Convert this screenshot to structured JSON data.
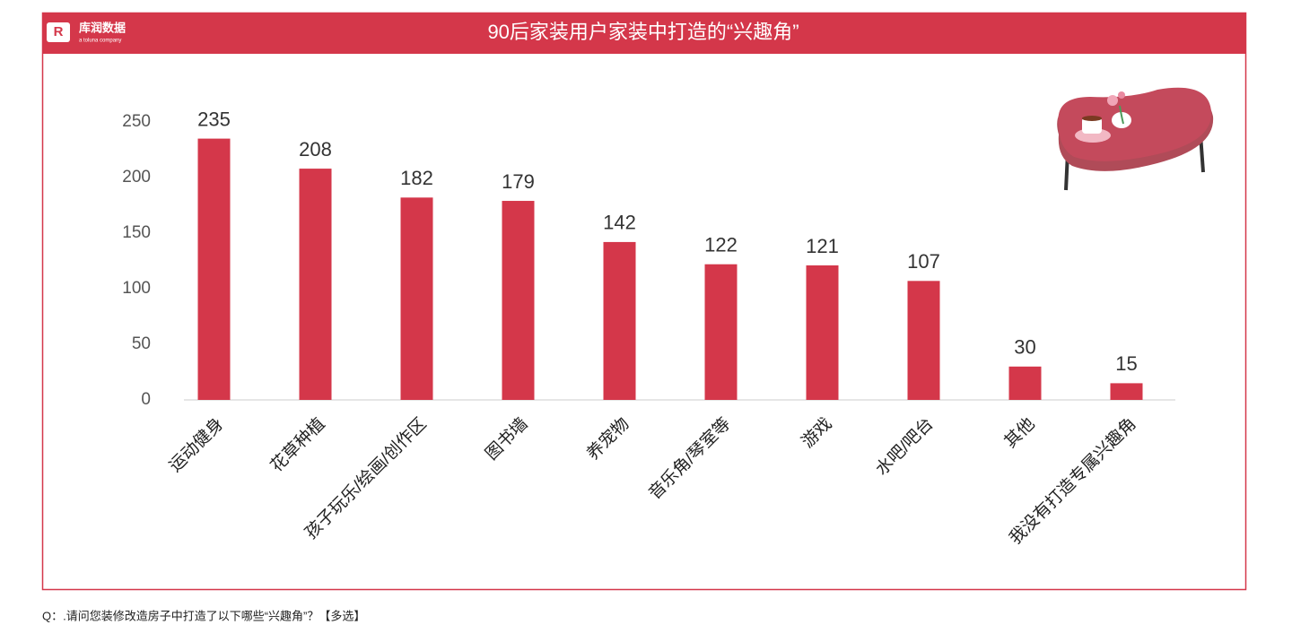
{
  "logo": {
    "name": "库润数据",
    "tagline": "a toluna company"
  },
  "chart_data": {
    "type": "bar",
    "title": "90后家装用户家装中打造的“兴趣角”",
    "categories": [
      "运动健身",
      "花草种植",
      "孩子玩乐/绘画/创作区",
      "图书墙",
      "养宠物",
      "音乐角/琴室等",
      "游戏",
      "水吧/吧台",
      "其他",
      "我没有打造专属兴趣角"
    ],
    "values": [
      235,
      208,
      182,
      179,
      142,
      122,
      121,
      107,
      30,
      15
    ],
    "color": "#d4374a",
    "ylim": [
      0,
      250
    ],
    "yticks": [
      0,
      50,
      100,
      150,
      200,
      250
    ],
    "grid": false
  },
  "footnote": "Q：.请问您装修改造房子中打造了以下哪些“兴趣角”？【多选】"
}
